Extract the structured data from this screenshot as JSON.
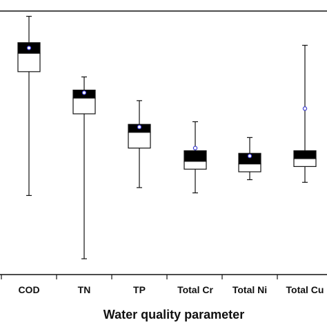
{
  "chart_data": {
    "type": "box",
    "xlabel": "Water quality parameter",
    "categories": [
      "COD",
      "TN",
      "TP",
      "Total Cr",
      "Total Ni",
      "Total Cu"
    ],
    "boxes": [
      {
        "whisker_low": 0.3,
        "q1": 0.77,
        "median": 0.84,
        "q3": 0.88,
        "whisker_high": 0.98,
        "mean": 0.86
      },
      {
        "whisker_low": 0.06,
        "q1": 0.61,
        "median": 0.67,
        "q3": 0.7,
        "whisker_high": 0.75,
        "mean": 0.69
      },
      {
        "whisker_low": 0.33,
        "q1": 0.48,
        "median": 0.54,
        "q3": 0.57,
        "whisker_high": 0.66,
        "mean": 0.56
      },
      {
        "whisker_low": 0.31,
        "q1": 0.4,
        "median": 0.43,
        "q3": 0.47,
        "whisker_high": 0.58,
        "mean": 0.48
      },
      {
        "whisker_low": 0.36,
        "q1": 0.39,
        "median": 0.42,
        "q3": 0.46,
        "whisker_high": 0.52,
        "mean": 0.45
      },
      {
        "whisker_low": 0.35,
        "q1": 0.41,
        "median": 0.44,
        "q3": 0.47,
        "whisker_high": 0.87,
        "mean": 0.63
      }
    ],
    "ylim": [
      0,
      1
    ],
    "grid": false,
    "colors": {
      "box_upper": "#000000",
      "box_lower": "#ffffff",
      "mean_marker": "#3a3ad0"
    }
  }
}
